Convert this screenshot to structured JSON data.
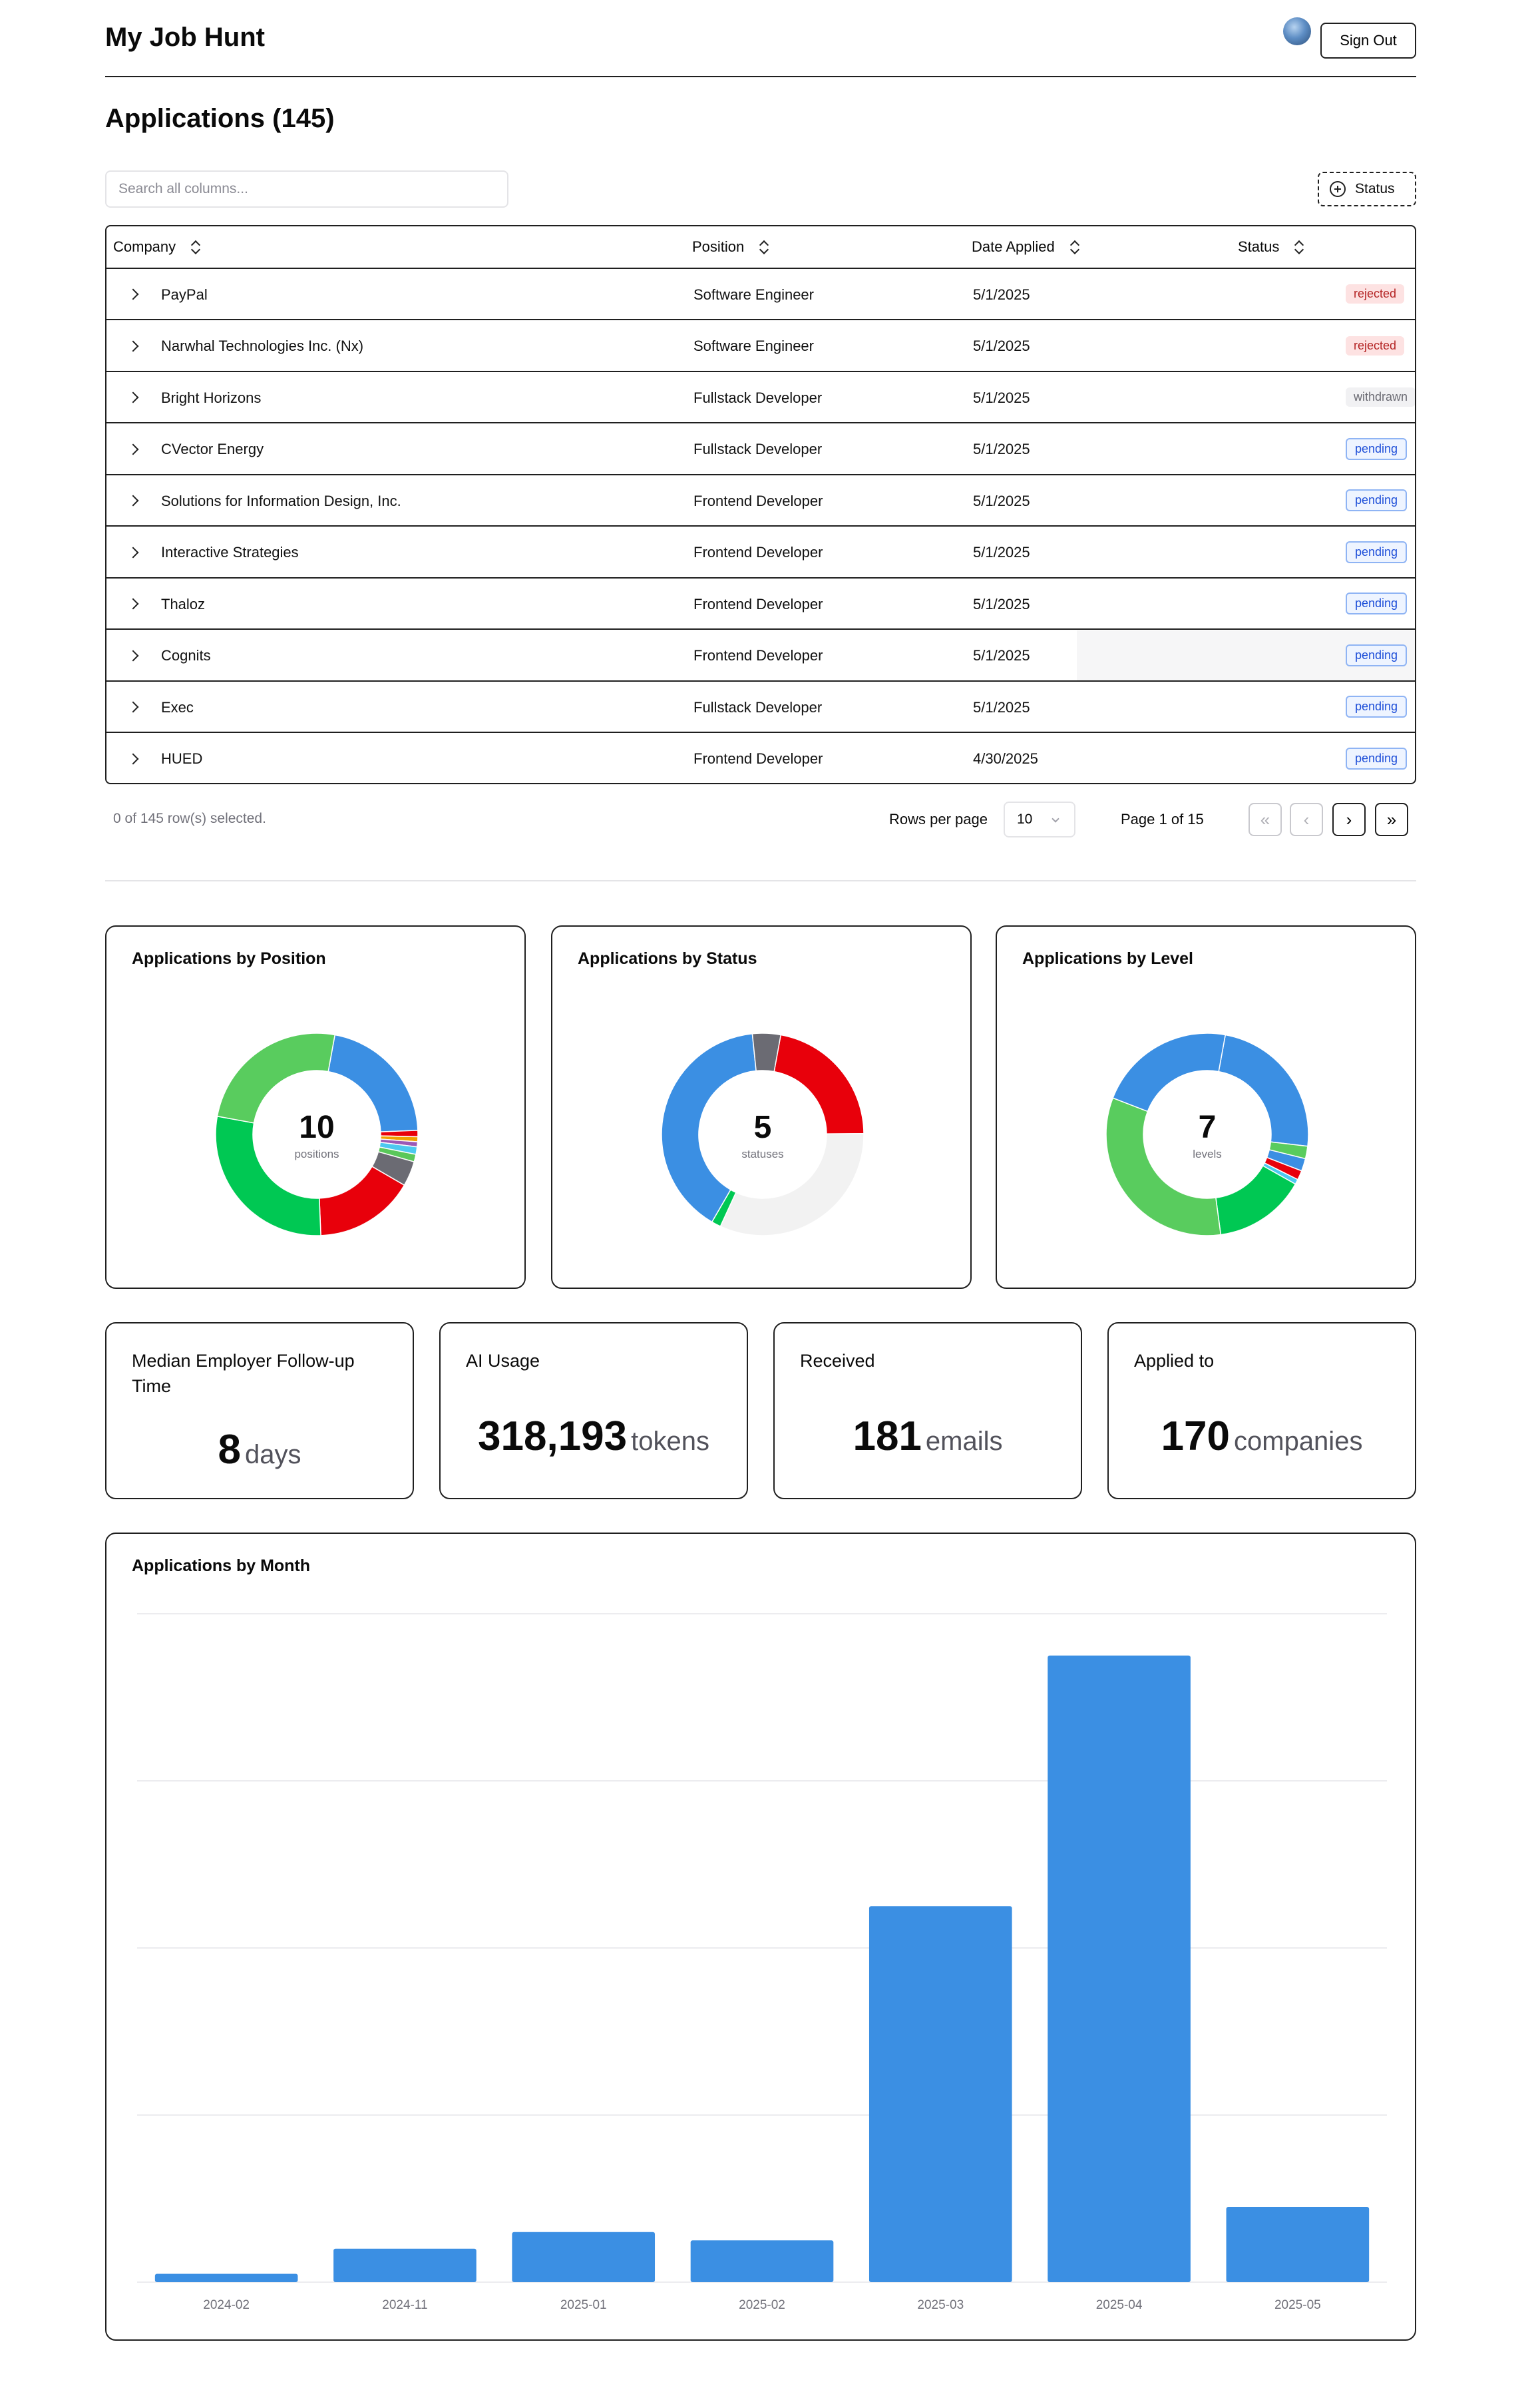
{
  "header": {
    "app_title": "My Job Hunt",
    "signout_label": "Sign Out"
  },
  "page": {
    "heading": "Applications (145)"
  },
  "search": {
    "placeholder": "Search all columns..."
  },
  "filter": {
    "status_label": "Status"
  },
  "table": {
    "columns": [
      "Company",
      "Position",
      "Date Applied",
      "Status"
    ],
    "rows": [
      {
        "company": "PayPal",
        "position": "Software Engineer",
        "date": "5/1/2025",
        "status": "rejected"
      },
      {
        "company": "Narwhal Technologies Inc. (Nx)",
        "position": "Software Engineer",
        "date": "5/1/2025",
        "status": "rejected"
      },
      {
        "company": "Bright Horizons",
        "position": "Fullstack Developer",
        "date": "5/1/2025",
        "status": "withdrawn"
      },
      {
        "company": "CVector Energy",
        "position": "Fullstack Developer",
        "date": "5/1/2025",
        "status": "pending"
      },
      {
        "company": "Solutions for Information Design, Inc.",
        "position": "Frontend Developer",
        "date": "5/1/2025",
        "status": "pending"
      },
      {
        "company": "Interactive Strategies",
        "position": "Frontend Developer",
        "date": "5/1/2025",
        "status": "pending"
      },
      {
        "company": "Thaloz",
        "position": "Frontend Developer",
        "date": "5/1/2025",
        "status": "pending"
      },
      {
        "company": "Cognits",
        "position": "Frontend Developer",
        "date": "5/1/2025",
        "status": "pending"
      },
      {
        "company": "Exec",
        "position": "Fullstack Developer",
        "date": "5/1/2025",
        "status": "pending"
      },
      {
        "company": "HUED",
        "position": "Frontend Developer",
        "date": "4/30/2025",
        "status": "pending"
      }
    ]
  },
  "pagination": {
    "selected_text": "0 of 145 row(s) selected.",
    "rows_per_page_label": "Rows per page",
    "rows_per_page_value": "10",
    "page_text": "Page 1 of 15",
    "first_glyph": "«",
    "prev_glyph": "‹",
    "next_glyph": "›",
    "last_glyph": "»"
  },
  "donuts": [
    {
      "title": "Applications by Position",
      "center_value": "10",
      "center_label": "positions",
      "segments": [
        {
          "value": 0.215,
          "color": "#3b8fe3"
        },
        {
          "value": 0.01,
          "color": "#e8000b"
        },
        {
          "value": 0.008,
          "color": "#f0a000"
        },
        {
          "value": 0.008,
          "color": "#9b59b6"
        },
        {
          "value": 0.012,
          "color": "#4cc9f0"
        },
        {
          "value": 0.012,
          "color": "#5ac85a"
        },
        {
          "value": 0.04,
          "color": "#6b6b73"
        },
        {
          "value": 0.16,
          "color": "#e8000b"
        },
        {
          "value": 0.285,
          "color": "#00c853"
        },
        {
          "value": 0.25,
          "color": "#59cc5e"
        }
      ]
    },
    {
      "title": "Applications by Status",
      "center_value": "5",
      "center_label": "statuses",
      "segments": [
        {
          "value": 0.22,
          "color": "#e8000b"
        },
        {
          "value": 0.32,
          "color": "#f2f2f2"
        },
        {
          "value": 0.015,
          "color": "#00c853"
        },
        {
          "value": 0.4,
          "color": "#3b8fe3"
        },
        {
          "value": 0.045,
          "color": "#6b6b73"
        }
      ]
    },
    {
      "title": "Applications by Level",
      "center_value": "7",
      "center_label": "levels",
      "segments": [
        {
          "value": 0.24,
          "color": "#3b8fe3"
        },
        {
          "value": 0.02,
          "color": "#59cc5e"
        },
        {
          "value": 0.02,
          "color": "#3b8fe3"
        },
        {
          "value": 0.015,
          "color": "#e8000b"
        },
        {
          "value": 0.008,
          "color": "#4cc9f0"
        },
        {
          "value": 0.147,
          "color": "#00c853"
        },
        {
          "value": 0.33,
          "color": "#59cc5e"
        },
        {
          "value": 0.22,
          "color": "#3b8fe3"
        }
      ]
    }
  ],
  "stats": [
    {
      "title": "Median Employer Follow-up Time",
      "value": "8",
      "unit": "days"
    },
    {
      "title": "AI Usage",
      "value": "318,193",
      "unit": "tokens"
    },
    {
      "title": "Received",
      "value": "181",
      "unit": "emails"
    },
    {
      "title": "Applied to",
      "value": "170",
      "unit": "companies"
    }
  ],
  "chart_data": {
    "type": "bar",
    "title": "Applications by Month",
    "categories": [
      "2024-02",
      "2024-11",
      "2025-01",
      "2025-02",
      "2025-03",
      "2025-04",
      "2025-05"
    ],
    "values": [
      1,
      4,
      6,
      5,
      45,
      75,
      9
    ],
    "ylim": [
      0,
      80
    ],
    "grid": true,
    "color": "#3b8fe3"
  }
}
